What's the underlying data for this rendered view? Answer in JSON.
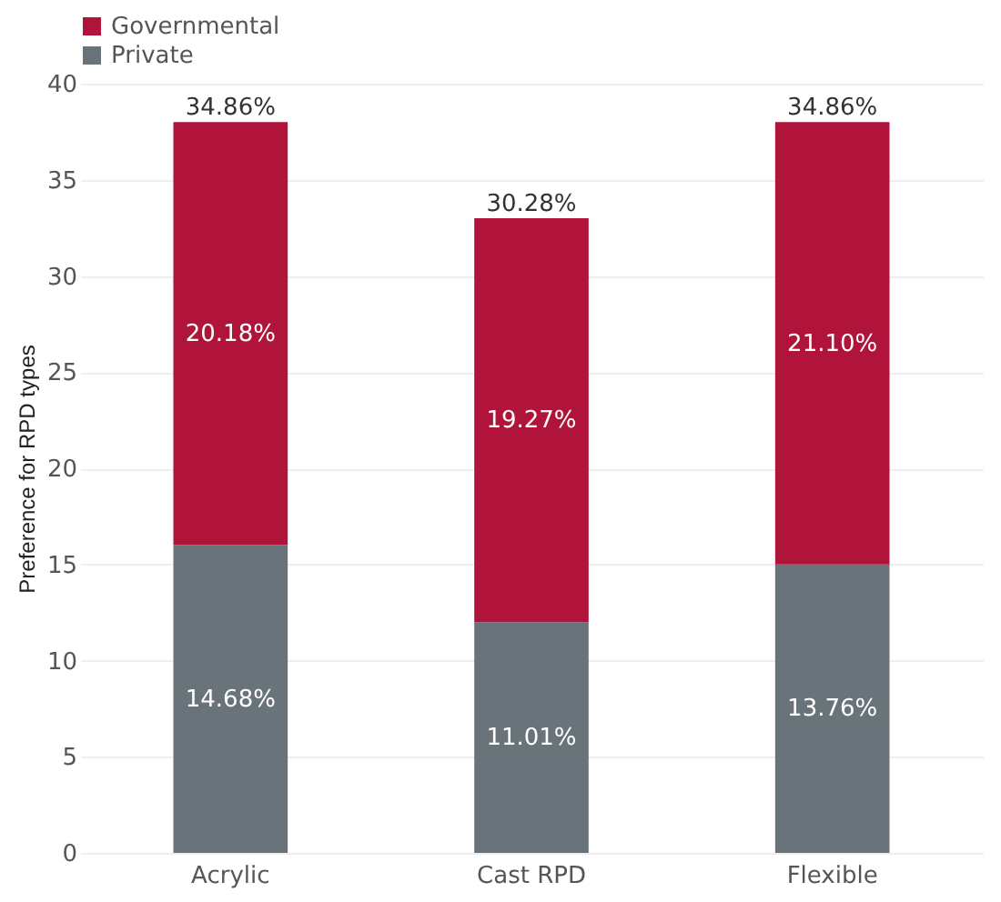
{
  "chart_data": {
    "type": "bar",
    "stacked": true,
    "ylabel": "Preference for RPD types",
    "categories": [
      "Acrylic",
      "Cast RPD",
      "Flexible"
    ],
    "series": [
      {
        "name": "Private",
        "color": "#69737a",
        "values": [
          16,
          12,
          15
        ]
      },
      {
        "name": "Governmental",
        "color": "#b0143a",
        "values": [
          22,
          21,
          23
        ]
      }
    ],
    "annotations": [
      "14.68%",
      "11.01%",
      "13.76%",
      "20.18%",
      "19.27%",
      "21.10%",
      "34.86%",
      "30.28%",
      "34.86%"
    ],
    "ylim": [
      0,
      40
    ],
    "yticks": [
      0,
      5,
      10,
      15,
      20,
      25,
      30,
      35,
      40
    ],
    "grid": "y",
    "legend": "top left"
  }
}
